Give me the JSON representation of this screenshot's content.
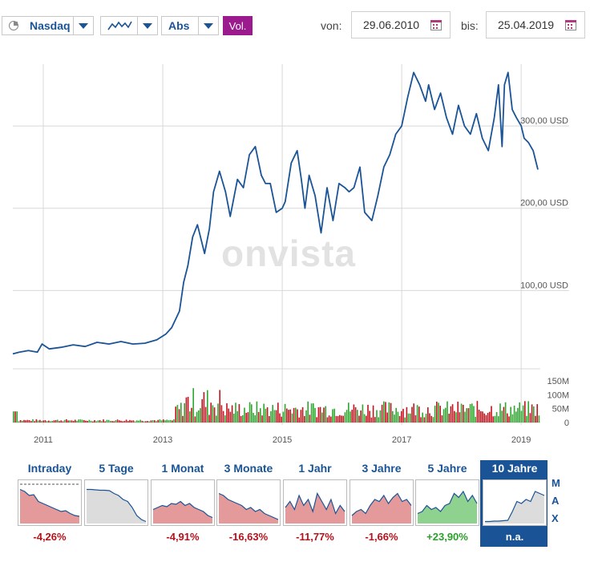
{
  "toolbar": {
    "exchange": "Nasdaq",
    "scale": "Abs",
    "volume": "Vol.",
    "from_label": "von:",
    "from_date": "29.06.2010",
    "to_label": "bis:",
    "to_date": "25.04.2019"
  },
  "colors": {
    "accent": "#1a5496",
    "volume_button": "#9b1b8e",
    "negative": "#b5121b",
    "positive": "#2aa02a",
    "price_line": "#1a5496",
    "volume_up": "#2ea62e",
    "volume_down": "#c0141e"
  },
  "watermark": "onvista",
  "chart_data": {
    "type": "line",
    "title": "",
    "xlabel": "",
    "ylabel": "",
    "x_range": [
      2010.49,
      2019.32
    ],
    "y_range": [
      0,
      380
    ],
    "x_ticks": [
      {
        "year": 2011,
        "label": "2011"
      },
      {
        "year": 2013,
        "label": "2013"
      },
      {
        "year": 2015,
        "label": "2015"
      },
      {
        "year": 2017,
        "label": "2017"
      },
      {
        "year": 2019,
        "label": "2019"
      }
    ],
    "y_ticks": [
      {
        "value": 100,
        "label": "100,00 USD"
      },
      {
        "value": 200,
        "label": "200,00 USD"
      },
      {
        "value": 300,
        "label": "300,00 USD"
      }
    ],
    "grid": true,
    "series": [
      {
        "x": [
          2010.49,
          2010.6,
          2010.75,
          2010.9,
          2010.98,
          2011.1,
          2011.3,
          2011.5,
          2011.7,
          2011.9,
          2012.1,
          2012.3,
          2012.5,
          2012.7,
          2012.9,
          2013.05,
          2013.15,
          2013.28,
          2013.35,
          2013.42,
          2013.5,
          2013.58,
          2013.7,
          2013.78,
          2013.85,
          2013.95,
          2014.05,
          2014.13,
          2014.25,
          2014.35,
          2014.45,
          2014.55,
          2014.65,
          2014.72,
          2014.8,
          2014.9,
          2015.0,
          2015.05,
          2015.15,
          2015.25,
          2015.32,
          2015.38,
          2015.45,
          2015.55,
          2015.65,
          2015.75,
          2015.85,
          2015.95,
          2016.05,
          2016.12,
          2016.2,
          2016.3,
          2016.38,
          2016.5,
          2016.6,
          2016.7,
          2016.8,
          2016.9,
          2017.0,
          2017.1,
          2017.2,
          2017.3,
          2017.4,
          2017.45,
          2017.55,
          2017.65,
          2017.75,
          2017.85,
          2017.95,
          2018.05,
          2018.15,
          2018.25,
          2018.35,
          2018.45,
          2018.55,
          2018.62,
          2018.68,
          2018.72,
          2018.78,
          2018.85,
          2018.92,
          2019.0,
          2019.05,
          2019.12,
          2019.2,
          2019.28
        ],
        "y": [
          23,
          25,
          27,
          25,
          35,
          29,
          31,
          34,
          32,
          37,
          35,
          38,
          35,
          36,
          40,
          47,
          55,
          75,
          110,
          130,
          165,
          180,
          145,
          175,
          220,
          245,
          220,
          190,
          235,
          225,
          265,
          275,
          240,
          230,
          230,
          195,
          200,
          208,
          255,
          270,
          235,
          200,
          240,
          215,
          170,
          225,
          185,
          230,
          225,
          220,
          225,
          250,
          195,
          185,
          215,
          250,
          265,
          290,
          300,
          335,
          365,
          350,
          330,
          350,
          320,
          340,
          310,
          290,
          325,
          300,
          290,
          315,
          285,
          270,
          310,
          350,
          275,
          350,
          365,
          320,
          310,
          300,
          285,
          280,
          270,
          247
        ]
      }
    ],
    "volume": {
      "y_ticks": [
        {
          "value": 0,
          "label": "0"
        },
        {
          "value": 50,
          "label": "50M"
        },
        {
          "value": 100,
          "label": "100M"
        },
        {
          "value": 150,
          "label": "150M"
        }
      ]
    }
  },
  "periods": [
    {
      "label": "Intraday",
      "change": "-4,26%",
      "trend": "down",
      "shape": [
        0.85,
        0.8,
        0.7,
        0.72,
        0.55,
        0.5,
        0.45,
        0.4,
        0.35,
        0.3,
        0.32,
        0.25,
        0.2,
        0.18
      ],
      "selected": false
    },
    {
      "label": "5 Tage",
      "change": "",
      "trend": "none",
      "shape": [
        0.85,
        0.85,
        0.84,
        0.83,
        0.83,
        0.82,
        0.75,
        0.7,
        0.6,
        0.55,
        0.4,
        0.2,
        0.1,
        0.05
      ],
      "selected": false
    },
    {
      "label": "1 Monat",
      "change": "-4,91%",
      "trend": "down",
      "shape": [
        0.35,
        0.4,
        0.45,
        0.42,
        0.5,
        0.48,
        0.55,
        0.45,
        0.5,
        0.4,
        0.35,
        0.3,
        0.2,
        0.15
      ],
      "selected": false
    },
    {
      "label": "3 Monate",
      "change": "-16,63%",
      "trend": "down",
      "shape": [
        0.75,
        0.7,
        0.6,
        0.55,
        0.5,
        0.45,
        0.35,
        0.4,
        0.3,
        0.35,
        0.25,
        0.2,
        0.15,
        0.1
      ],
      "selected": false
    },
    {
      "label": "1 Jahr",
      "change": "-11,77%",
      "trend": "down",
      "shape": [
        0.4,
        0.55,
        0.35,
        0.7,
        0.45,
        0.6,
        0.3,
        0.75,
        0.55,
        0.35,
        0.6,
        0.25,
        0.45,
        0.3
      ],
      "selected": false
    },
    {
      "label": "3 Jahre",
      "change": "-1,66%",
      "trend": "down",
      "shape": [
        0.2,
        0.3,
        0.35,
        0.25,
        0.45,
        0.6,
        0.55,
        0.7,
        0.5,
        0.65,
        0.75,
        0.55,
        0.6,
        0.45
      ],
      "selected": false
    },
    {
      "label": "5 Jahre",
      "change": "+23,90%",
      "trend": "up",
      "shape": [
        0.25,
        0.3,
        0.45,
        0.35,
        0.4,
        0.3,
        0.45,
        0.5,
        0.75,
        0.65,
        0.8,
        0.55,
        0.7,
        0.5
      ],
      "selected": false
    },
    {
      "label": "10 Jahre",
      "change": "n.a.",
      "trend": "none",
      "shape": [
        0.05,
        0.05,
        0.06,
        0.06,
        0.07,
        0.08,
        0.3,
        0.55,
        0.5,
        0.6,
        0.55,
        0.8,
        0.75,
        0.7
      ],
      "selected": true
    }
  ],
  "max_letters": [
    "M",
    "A",
    "X"
  ]
}
